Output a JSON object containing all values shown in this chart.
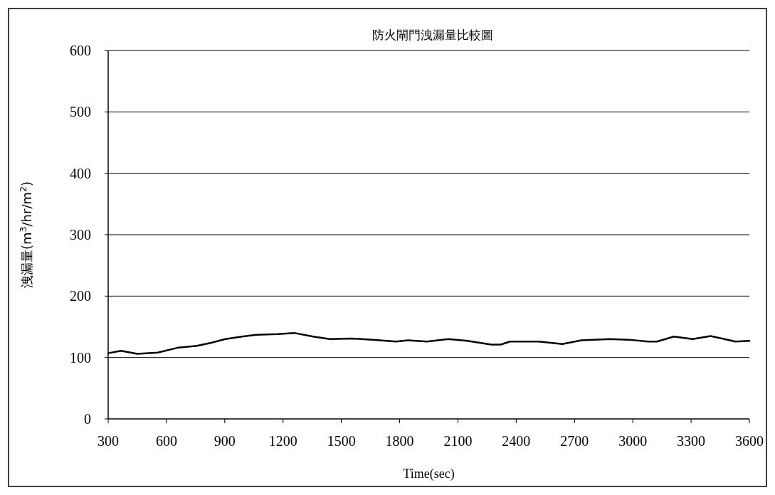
{
  "chart_data": {
    "type": "line",
    "title": "防火閘門洩漏量比較圖",
    "xlabel": "Time(sec)",
    "ylabel": "洩漏量(m$^{3}$/hr/m$^{2}$)",
    "xlim": [
      300,
      3600
    ],
    "xticks": [
      300,
      600,
      900,
      1200,
      1500,
      1800,
      2100,
      2400,
      2700,
      3000,
      3300,
      3600
    ],
    "ylim": [
      0,
      600
    ],
    "yticks": [
      0,
      100,
      200,
      300,
      400,
      500,
      600
    ],
    "grid": "y",
    "marker": "none",
    "line_style": "solid",
    "series": [
      {
        "color": "#000000",
        "x": [
          300,
          366,
          450,
          555,
          659,
          757,
          830,
          903,
          989,
          1062,
          1172,
          1257,
          1355,
          1440,
          1550,
          1660,
          1782,
          1843,
          1941,
          2051,
          2149,
          2271,
          2320,
          2368,
          2515,
          2637,
          2735,
          2882,
          2979,
          3077,
          3125,
          3211,
          3308,
          3400,
          3528,
          3600
        ],
        "values": [
          107,
          111,
          106,
          108,
          116,
          119,
          124,
          130,
          134,
          137,
          138,
          140,
          134,
          130,
          131,
          129,
          126,
          128,
          126,
          130,
          127,
          121,
          121,
          126,
          126,
          122,
          128,
          130,
          129,
          126,
          126,
          134,
          130,
          135,
          126,
          127
        ]
      }
    ]
  }
}
